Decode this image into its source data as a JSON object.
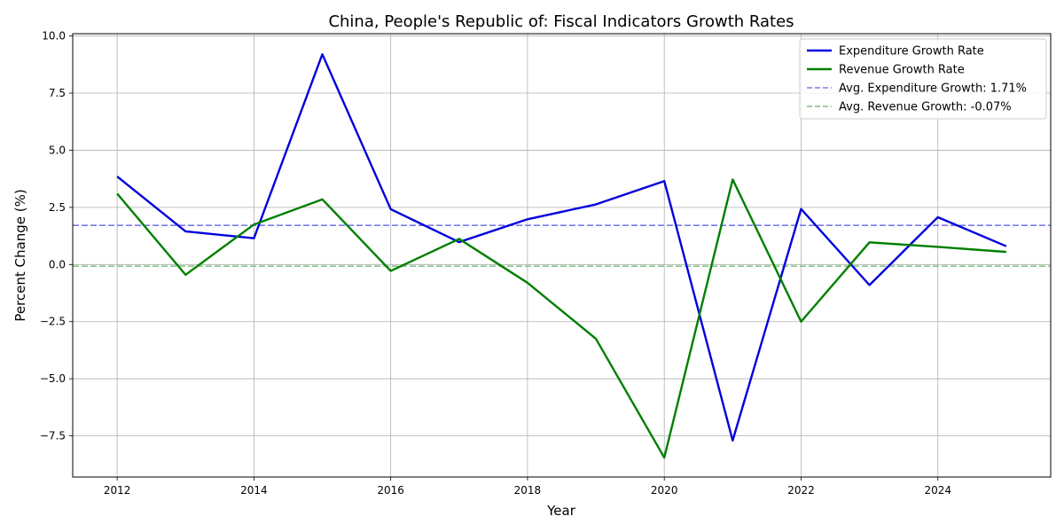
{
  "chart_data": {
    "type": "line",
    "title": "China, People's Republic of: Fiscal Indicators Growth Rates",
    "xlabel": "Year",
    "ylabel": "Percent Change (%)",
    "xlim": [
      2011.35,
      2025.65
    ],
    "ylim": [
      -9.3,
      10.1
    ],
    "x_ticks": [
      2012,
      2014,
      2016,
      2018,
      2020,
      2022,
      2024
    ],
    "y_ticks": [
      -7.5,
      -5.0,
      -2.5,
      0.0,
      2.5,
      5.0,
      7.5,
      10.0
    ],
    "y_tick_labels": [
      "−7.5",
      "−5.0",
      "−2.5",
      "0.0",
      "2.5",
      "5.0",
      "7.5",
      "10.0"
    ],
    "grid": true,
    "legend_position": "top-right",
    "x": [
      2012,
      2013,
      2014,
      2015,
      2016,
      2017,
      2018,
      2019,
      2020,
      2021,
      2022,
      2023,
      2024,
      2025
    ],
    "series": [
      {
        "name": "Expenditure Growth Rate",
        "color": "#0000dd",
        "values": [
          3.85,
          1.45,
          1.15,
          9.2,
          2.42,
          0.98,
          1.98,
          2.63,
          3.65,
          -7.7,
          2.43,
          -0.9,
          2.07,
          0.8
        ]
      },
      {
        "name": "Revenue Growth Rate",
        "color": "#007f00",
        "values": [
          3.1,
          -0.45,
          1.75,
          2.85,
          -0.28,
          1.12,
          -0.8,
          -3.25,
          -8.45,
          3.72,
          -2.5,
          0.97,
          0.77,
          0.55
        ]
      }
    ],
    "reference_lines": [
      {
        "name": "Avg. Expenditure Growth: 1.71%",
        "value": 1.71,
        "color": "#7b7bf0",
        "style": "dashed"
      },
      {
        "name": "Avg. Revenue Growth: -0.07%",
        "value": -0.07,
        "color": "#7fc07f",
        "style": "dashed"
      }
    ]
  }
}
